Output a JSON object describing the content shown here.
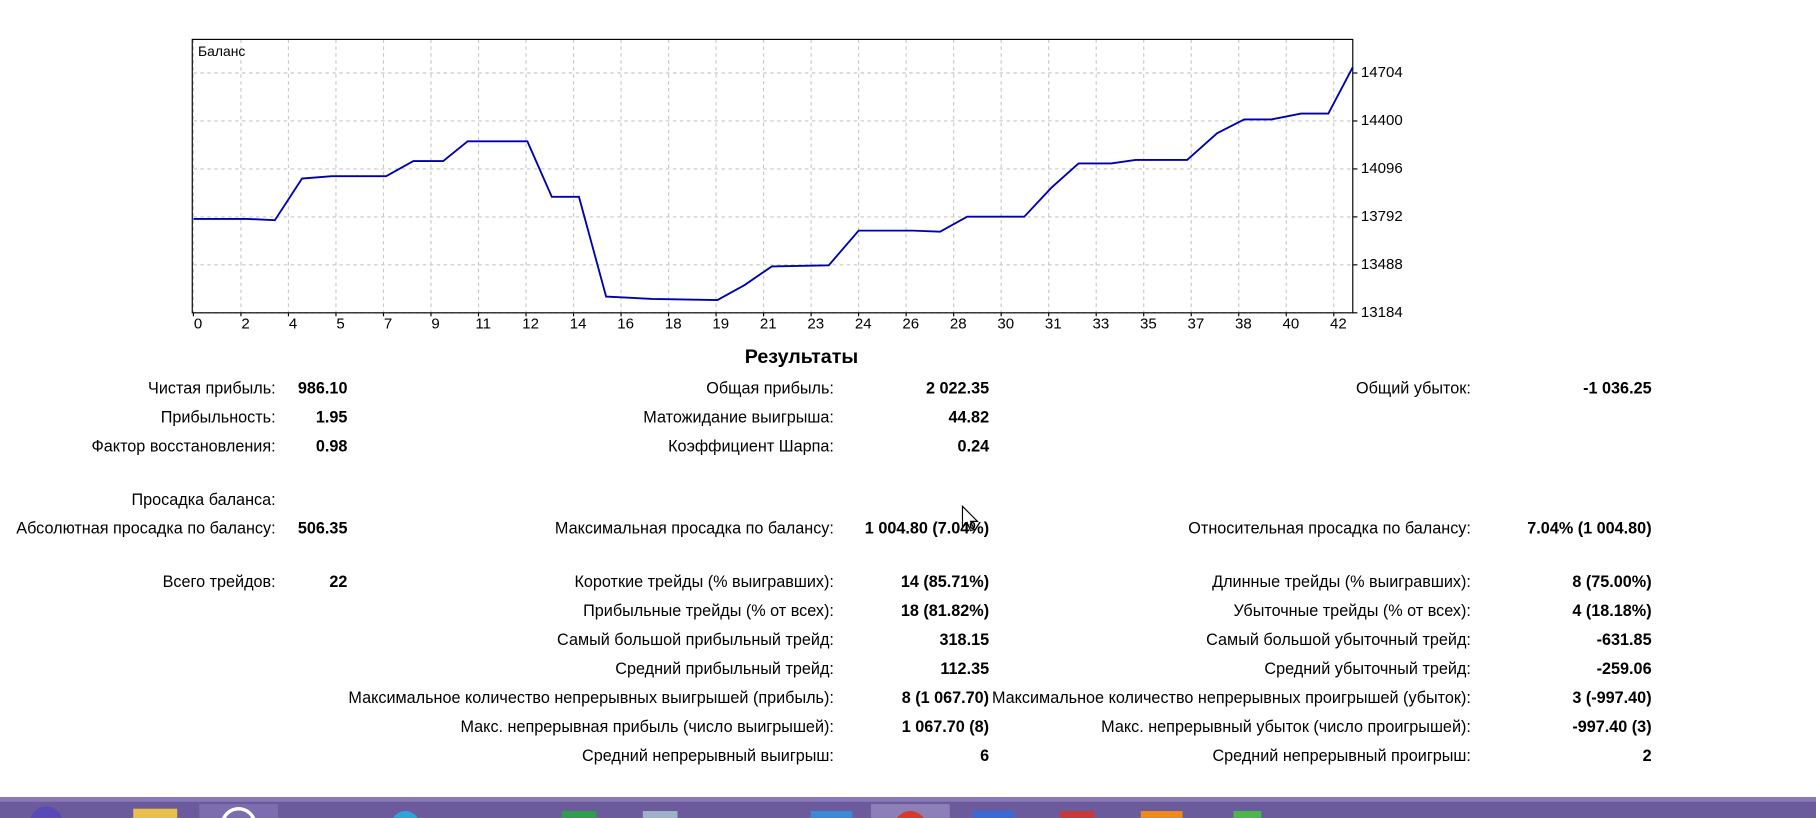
{
  "chart_data": {
    "type": "line",
    "title": "Баланс",
    "x": [
      0,
      2.0,
      3.0,
      4.0,
      5.1,
      7.1,
      8.1,
      9.2,
      10.1,
      12.3,
      13.2,
      14.2,
      15.2,
      16.9,
      19.3,
      20.3,
      21.3,
      23.4,
      24.5,
      26.5,
      27.5,
      28.5,
      30.6,
      31.6,
      32.6,
      33.8,
      34.7,
      36.6,
      37.7,
      38.7,
      39.7,
      40.8,
      41.8,
      42.7
    ],
    "series": [
      {
        "name": "Баланс",
        "color": "#0000b0",
        "values": [
          13779,
          13779,
          13771,
          14035,
          14050,
          14050,
          14146,
          14146,
          14271,
          14271,
          13919,
          13919,
          13287,
          13272,
          13265,
          13360,
          13478,
          13485,
          13705,
          13705,
          13698,
          13793,
          13793,
          13977,
          14131,
          14131,
          14153,
          14153,
          14322,
          14410,
          14410,
          14447,
          14447,
          14741
        ]
      }
    ],
    "xlim": [
      0,
      42.7
    ],
    "xticks": [
      0,
      {
        "value": 1.75,
        "label": "2"
      },
      {
        "value": 3.5,
        "label": "4"
      },
      {
        "value": 5.25,
        "label": "5"
      },
      7,
      {
        "value": 8.75,
        "label": "9"
      },
      {
        "value": 10.5,
        "label": "11"
      },
      {
        "value": 12.25,
        "label": "12"
      },
      14,
      {
        "value": 15.75,
        "label": "16"
      },
      {
        "value": 17.5,
        "label": "18"
      },
      {
        "value": 19.25,
        "label": "19"
      },
      21,
      {
        "value": 22.75,
        "label": "23"
      },
      {
        "value": 24.5,
        "label": "24"
      },
      {
        "value": 26.25,
        "label": "26"
      },
      28,
      {
        "value": 29.75,
        "label": "30"
      },
      {
        "value": 31.5,
        "label": "31"
      },
      {
        "value": 33.25,
        "label": "33"
      },
      35,
      {
        "value": 36.75,
        "label": "37"
      },
      {
        "value": 38.5,
        "label": "38"
      },
      {
        "value": 40.25,
        "label": "40"
      },
      42
    ],
    "ylim": [
      13184,
      14917
    ],
    "yticks": [
      13184,
      13488,
      13792,
      14096,
      14400,
      14704
    ],
    "grid": true
  },
  "results": {
    "title": "Результаты",
    "groups": [
      [
        {
          "left": {
            "label": "Чистая прибыль:",
            "value": "986.10"
          },
          "middle": {
            "label": "Общая прибыль:",
            "value": "2 022.35"
          },
          "right": {
            "label": "Общий убыток:",
            "value": "-1 036.25"
          }
        },
        {
          "left": {
            "label": "Прибыльность:",
            "value": "1.95"
          },
          "middle": {
            "label": "Матожидание выигрыша:",
            "value": "44.82"
          }
        },
        {
          "left": {
            "label": "Фактор восстановления:",
            "value": "0.98"
          },
          "middle": {
            "label": "Коэффициент Шарпа:",
            "value": "0.24"
          }
        }
      ],
      [
        {
          "left": {
            "label": "Просадка баланса:"
          }
        },
        {
          "left": {
            "label": "Абсолютная просадка по балансу:",
            "value": "506.35"
          },
          "middle": {
            "label": "Максимальная просадка по балансу:",
            "value": "1 004.80 (7.04%)"
          },
          "right": {
            "label": "Относительная просадка по балансу:",
            "value": "7.04% (1 004.80)"
          }
        }
      ],
      [
        {
          "left": {
            "label": "Всего трейдов:",
            "value": "22"
          },
          "middle": {
            "label": "Короткие трейды (% выигравших):",
            "value": "14 (85.71%)"
          },
          "right": {
            "label": "Длинные трейды (% выигравших):",
            "value": "8 (75.00%)"
          }
        },
        {
          "middle": {
            "label": "Прибыльные трейды (% от всех):",
            "value": "18 (81.82%)"
          },
          "right": {
            "label": "Убыточные трейды (% от всех):",
            "value": "4 (18.18%)"
          }
        },
        {
          "middle": {
            "label": "Самый большой прибыльный трейд:",
            "value": "318.15"
          },
          "right": {
            "label": "Самый большой убыточный трейд:",
            "value": "-631.85"
          }
        },
        {
          "middle": {
            "label": "Средний прибыльный трейд:",
            "value": "112.35"
          },
          "right": {
            "label": "Средний убыточный трейд:",
            "value": "-259.06"
          }
        },
        {
          "middle": {
            "label": "Максимальное количество непрерывных выигрышей (прибыль):",
            "value": "8 (1 067.70)"
          },
          "right": {
            "label": "Максимальное количество непрерывных проигрышей (убыток):",
            "value": "3 (-997.40)"
          }
        },
        {
          "middle": {
            "label": "Макс. непрерывная прибыль (число выигрышей):",
            "value": "1 067.70 (8)"
          },
          "right": {
            "label": "Макс. непрерывный убыток (число проигрышей):",
            "value": "-997.40 (3)"
          }
        },
        {
          "middle": {
            "label": "Средний непрерывный выигрыш:",
            "value": "6"
          },
          "right": {
            "label": "Средний непрерывный проигрыш:",
            "value": "2"
          }
        }
      ]
    ]
  }
}
